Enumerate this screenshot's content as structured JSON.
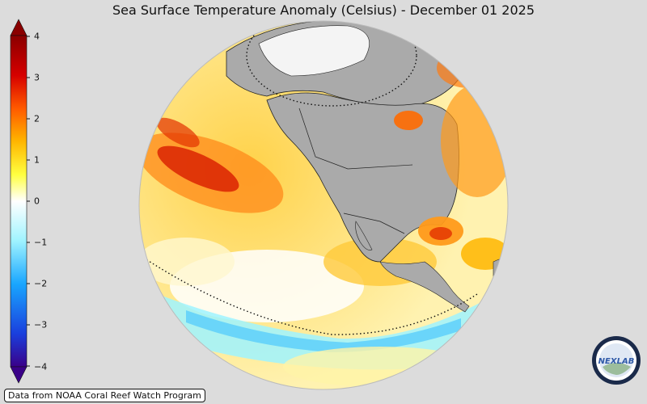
{
  "title": "Sea Surface Temperature Anomaly (Celsius) - December 01 2025",
  "colorbar": {
    "ticks": [
      "4",
      "3",
      "2",
      "1",
      "0",
      "−1",
      "−2",
      "−3",
      "−4"
    ],
    "colors": [
      "#3a0088",
      "#1a3fdd",
      "#19a6ff",
      "#9ff3ff",
      "#ffffff",
      "#ffff40",
      "#ffb600",
      "#ff5a00",
      "#d60000",
      "#8a0000"
    ]
  },
  "map": {
    "land_color": "#aaaaaa",
    "ocean_warm": "#ffe27a",
    "ocean_hot": "#e03000",
    "ocean_cool": "#8fe8ff"
  },
  "credit": "Data from NOAA Coral Reef Watch Program",
  "logo_text": "NEXLAB"
}
